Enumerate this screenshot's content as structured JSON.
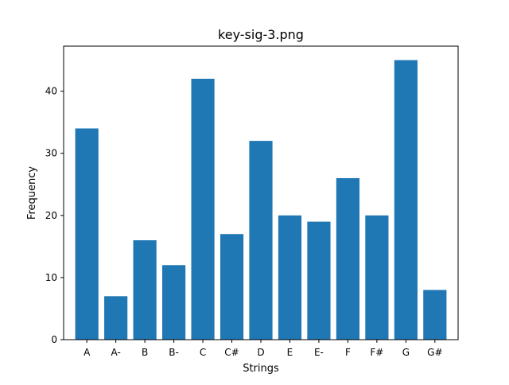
{
  "chart_data": {
    "type": "bar",
    "title": "key-sig-3.png",
    "xlabel": "Strings",
    "ylabel": "Frequency",
    "categories": [
      "A",
      "A-",
      "B",
      "B-",
      "C",
      "C#",
      "D",
      "E",
      "E-",
      "F",
      "F#",
      "G",
      "G#"
    ],
    "values": [
      34,
      7,
      16,
      12,
      42,
      17,
      32,
      20,
      19,
      26,
      20,
      45,
      8
    ],
    "ylim": [
      0,
      47.25
    ],
    "yticks": [
      0,
      10,
      20,
      30,
      40
    ],
    "grid": false,
    "bar_color": "#1f77b4"
  }
}
